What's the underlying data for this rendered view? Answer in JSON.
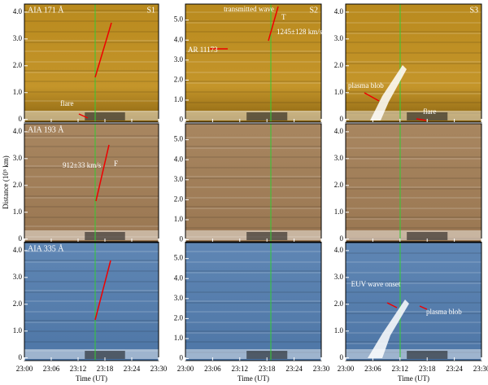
{
  "figure": {
    "y_label": "Distance (10⁵ km)",
    "x_label": "Time (UT)",
    "xticks": [
      "23:00",
      "23:06",
      "23:12",
      "23:18",
      "23:24",
      "23:30"
    ],
    "columns": [
      {
        "name": "S1",
        "ylim": [
          -0.1,
          4.3
        ],
        "yticks": [
          0,
          {
            "value": 1,
            "label": "1.0"
          },
          {
            "value": 2,
            "label": "2.0"
          },
          {
            "value": 3,
            "label": "3.0"
          },
          {
            "value": 4,
            "label": "4.0"
          }
        ]
      },
      {
        "name": "S2",
        "ylim": [
          -0.1,
          5.8
        ],
        "yticks": [
          0,
          {
            "value": 1,
            "label": "1.0"
          },
          {
            "value": 2,
            "label": "2.0"
          },
          {
            "value": 3,
            "label": "3.0"
          },
          {
            "value": 4,
            "label": "4.0"
          },
          {
            "value": 5,
            "label": "5.0"
          }
        ]
      },
      {
        "name": "S3",
        "ylim": [
          -0.1,
          4.3
        ],
        "yticks": [
          0,
          {
            "value": 1,
            "label": "1.0"
          },
          {
            "value": 2,
            "label": "2.0"
          },
          {
            "value": 3,
            "label": "3.0"
          },
          {
            "value": 4,
            "label": "4.0"
          }
        ]
      }
    ],
    "rows": [
      {
        "channel": "AIA 171 Å",
        "annotations": [
          "flare",
          "transmitted wave",
          "1245±128 km/s",
          "AR 11173",
          "T",
          "plasma blob",
          "flare"
        ]
      },
      {
        "channel": "AIA 193 Å",
        "annotations": [
          "912±33 km/s",
          "F"
        ]
      },
      {
        "channel": "AIA 335 Å",
        "annotations": [
          "EUV wave onset",
          "plasma blob"
        ]
      }
    ]
  }
}
